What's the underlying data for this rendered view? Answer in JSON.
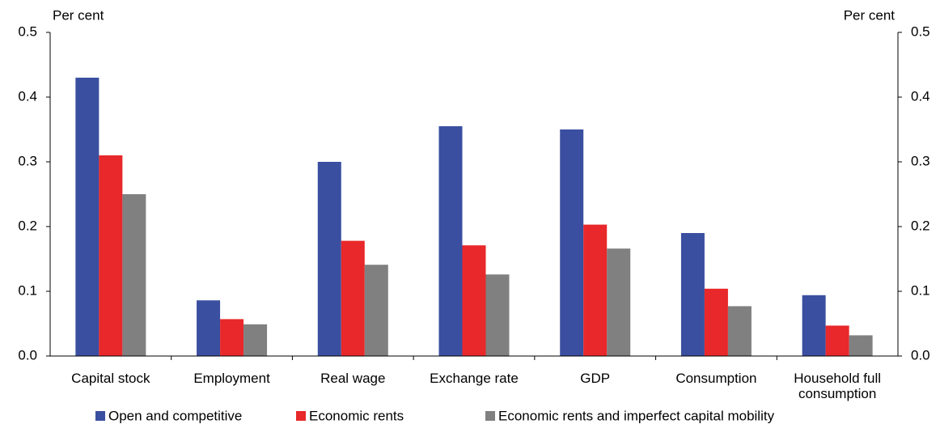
{
  "chart_data": {
    "type": "bar",
    "y_label": "Per cent",
    "y2_label": "Per cent",
    "categories": [
      "Capital stock",
      "Employment",
      "Real wage",
      "Exchange rate",
      "GDP",
      "Consumption",
      "Household full consumption"
    ],
    "series": [
      {
        "name": "Open and competitive",
        "color": "#3a4fa0",
        "values": [
          0.43,
          0.086,
          0.3,
          0.355,
          0.35,
          0.19,
          0.094
        ]
      },
      {
        "name": "Economic rents",
        "color": "#e8282a",
        "values": [
          0.31,
          0.057,
          0.178,
          0.171,
          0.203,
          0.104,
          0.047
        ]
      },
      {
        "name": "Economic rents and imperfect capital mobility",
        "color": "#808080",
        "values": [
          0.25,
          0.049,
          0.141,
          0.126,
          0.166,
          0.077,
          0.032
        ]
      }
    ],
    "ylim": [
      0,
      0.5
    ],
    "yticks": [
      {
        "value": 0,
        "label": "0.0"
      },
      0.1,
      0.2,
      0.3,
      0.4,
      0.5
    ],
    "y2lim": [
      0,
      0.5
    ],
    "y2ticks": [
      {
        "value": 0,
        "label": "0.0"
      },
      0.1,
      0.2,
      0.3,
      0.4,
      0.5
    ]
  }
}
